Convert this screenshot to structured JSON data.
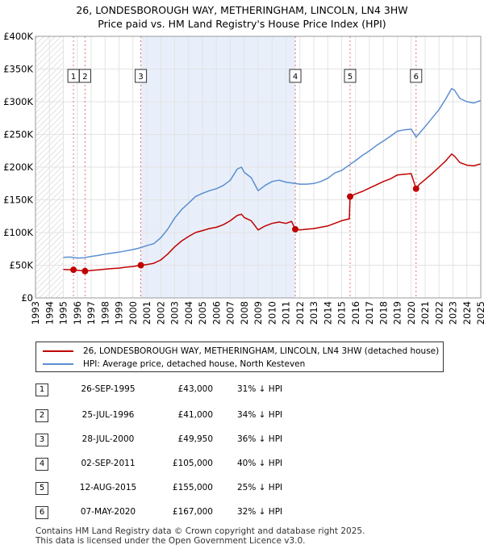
{
  "title": {
    "line1": "26, LONDESBOROUGH WAY, METHERINGHAM, LINCOLN, LN4 3HW",
    "line2": "Price paid vs. HM Land Registry's House Price Index (HPI)"
  },
  "chart_data": {
    "type": "line",
    "title": "26, LONDESBOROUGH WAY, METHERINGHAM, LINCOLN, LN4 3HW — Price paid vs. HM Land Registry's House Price Index (HPI)",
    "xlim": [
      1993,
      2025
    ],
    "ylim": [
      0,
      400000
    ],
    "x_ticks": [
      "1993",
      "1994",
      "1995",
      "1996",
      "1997",
      "1998",
      "1999",
      "2000",
      "2001",
      "2002",
      "2003",
      "2004",
      "2005",
      "2006",
      "2007",
      "2008",
      "2009",
      "2010",
      "2011",
      "2012",
      "2013",
      "2014",
      "2015",
      "2016",
      "2017",
      "2018",
      "2019",
      "2020",
      "2021",
      "2022",
      "2023",
      "2024",
      "2025"
    ],
    "y_ticks": [
      {
        "value": 0,
        "label": "£0"
      },
      {
        "value": 50000,
        "label": "£50K"
      },
      {
        "value": 100000,
        "label": "£100K"
      },
      {
        "value": 150000,
        "label": "£150K"
      },
      {
        "value": 200000,
        "label": "£200K"
      },
      {
        "value": 250000,
        "label": "£250K"
      },
      {
        "value": 300000,
        "label": "£300K"
      },
      {
        "value": 350000,
        "label": "£350K"
      },
      {
        "value": 400000,
        "label": "£400K"
      }
    ],
    "hatched_ranges": [
      [
        1993,
        1995.0
      ]
    ],
    "highlight_range": [
      2000.57,
      2011.67
    ],
    "grid": true,
    "series": [
      {
        "name": "HPI: Average price, detached house, North Kesteven",
        "color": "#5b8ed1",
        "points": [
          [
            1995,
            62000
          ],
          [
            1995.5,
            62500
          ],
          [
            1996,
            61000
          ],
          [
            1996.5,
            61500
          ],
          [
            1997,
            63500
          ],
          [
            1997.5,
            65000
          ],
          [
            1998,
            67000
          ],
          [
            1998.5,
            68500
          ],
          [
            1999,
            70000
          ],
          [
            1999.5,
            72000
          ],
          [
            2000,
            74000
          ],
          [
            2000.6,
            77000
          ],
          [
            2001,
            80000
          ],
          [
            2001.5,
            83000
          ],
          [
            2002,
            92000
          ],
          [
            2002.5,
            105000
          ],
          [
            2003,
            122000
          ],
          [
            2003.5,
            135000
          ],
          [
            2004,
            145000
          ],
          [
            2004.5,
            155000
          ],
          [
            2005,
            160000
          ],
          [
            2005.5,
            164000
          ],
          [
            2006,
            167000
          ],
          [
            2006.5,
            172000
          ],
          [
            2007,
            180000
          ],
          [
            2007.5,
            197000
          ],
          [
            2007.8,
            200000
          ],
          [
            2008,
            192000
          ],
          [
            2008.5,
            184000
          ],
          [
            2009,
            164000
          ],
          [
            2009.5,
            172000
          ],
          [
            2010,
            178000
          ],
          [
            2010.5,
            180000
          ],
          [
            2011,
            177000
          ],
          [
            2011.67,
            175000
          ],
          [
            2012,
            174000
          ],
          [
            2012.5,
            174000
          ],
          [
            2013,
            175000
          ],
          [
            2013.5,
            178000
          ],
          [
            2014,
            183000
          ],
          [
            2014.5,
            191000
          ],
          [
            2015,
            195000
          ],
          [
            2015.6,
            204000
          ],
          [
            2016,
            210000
          ],
          [
            2016.5,
            218000
          ],
          [
            2017,
            225000
          ],
          [
            2017.5,
            233000
          ],
          [
            2018,
            240000
          ],
          [
            2018.5,
            247000
          ],
          [
            2019,
            255000
          ],
          [
            2019.5,
            257000
          ],
          [
            2020,
            258000
          ],
          [
            2020.35,
            246000
          ],
          [
            2020.6,
            252000
          ],
          [
            2021,
            262000
          ],
          [
            2021.5,
            275000
          ],
          [
            2022,
            288000
          ],
          [
            2022.5,
            305000
          ],
          [
            2022.9,
            320000
          ],
          [
            2023.1,
            318000
          ],
          [
            2023.5,
            305000
          ],
          [
            2024,
            300000
          ],
          [
            2024.5,
            298000
          ],
          [
            2025,
            302000
          ]
        ]
      },
      {
        "name": "26, LONDESBOROUGH WAY, METHERINGHAM, LINCOLN, LN4 3HW (detached house)",
        "color": "#c00000",
        "points": [
          [
            1995,
            43500
          ],
          [
            1995.73,
            43000
          ],
          [
            1996,
            42500
          ],
          [
            1996.56,
            41000
          ],
          [
            1997,
            42000
          ],
          [
            1997.5,
            43000
          ],
          [
            1998,
            44000
          ],
          [
            1998.5,
            45000
          ],
          [
            1999,
            45500
          ],
          [
            1999.5,
            47000
          ],
          [
            2000,
            48000
          ],
          [
            2000.57,
            49950
          ],
          [
            2001,
            51000
          ],
          [
            2001.5,
            53000
          ],
          [
            2002,
            58000
          ],
          [
            2002.5,
            67000
          ],
          [
            2003,
            78000
          ],
          [
            2003.5,
            87000
          ],
          [
            2004,
            94000
          ],
          [
            2004.5,
            100000
          ],
          [
            2005,
            103000
          ],
          [
            2005.5,
            106000
          ],
          [
            2006,
            108000
          ],
          [
            2006.5,
            112000
          ],
          [
            2007,
            118000
          ],
          [
            2007.5,
            126000
          ],
          [
            2007.8,
            128000
          ],
          [
            2008,
            123000
          ],
          [
            2008.5,
            118000
          ],
          [
            2009,
            104000
          ],
          [
            2009.5,
            110000
          ],
          [
            2010,
            114000
          ],
          [
            2010.5,
            116000
          ],
          [
            2011,
            114000
          ],
          [
            2011.4,
            117000
          ],
          [
            2011.67,
            105000
          ],
          [
            2012,
            104000
          ],
          [
            2012.5,
            105000
          ],
          [
            2013,
            106000
          ],
          [
            2013.5,
            108000
          ],
          [
            2014,
            110000
          ],
          [
            2014.5,
            114000
          ],
          [
            2015,
            118000
          ],
          [
            2015.55,
            121000
          ],
          [
            2015.61,
            155000
          ],
          [
            2016,
            159000
          ],
          [
            2016.5,
            163000
          ],
          [
            2017,
            168000
          ],
          [
            2017.5,
            173000
          ],
          [
            2018,
            178000
          ],
          [
            2018.5,
            182000
          ],
          [
            2019,
            188000
          ],
          [
            2019.5,
            189000
          ],
          [
            2020,
            190000
          ],
          [
            2020.35,
            167000
          ],
          [
            2020.6,
            174000
          ],
          [
            2021,
            181000
          ],
          [
            2021.5,
            190000
          ],
          [
            2022,
            200000
          ],
          [
            2022.5,
            210000
          ],
          [
            2022.9,
            220000
          ],
          [
            2023.1,
            217000
          ],
          [
            2023.5,
            207000
          ],
          [
            2024,
            203000
          ],
          [
            2024.5,
            202000
          ],
          [
            2025,
            205000
          ]
        ]
      }
    ],
    "sales": [
      {
        "label": "1",
        "x": 1995.73,
        "price": 43000
      },
      {
        "label": "2",
        "x": 1996.56,
        "price": 41000
      },
      {
        "label": "3",
        "x": 2000.57,
        "price": 49950
      },
      {
        "label": "4",
        "x": 2011.67,
        "price": 105000
      },
      {
        "label": "5",
        "x": 2015.61,
        "price": 155000
      },
      {
        "label": "6",
        "x": 2020.35,
        "price": 167000
      }
    ]
  },
  "legend": {
    "property": "26, LONDESBOROUGH WAY, METHERINGHAM, LINCOLN, LN4 3HW (detached house)",
    "hpi": "HPI: Average price, detached house, North Kesteven",
    "colors": {
      "property": "#c00000",
      "hpi": "#5b8ed1"
    }
  },
  "transactions": [
    {
      "num": "1",
      "date": "26-SEP-1995",
      "price": "£43,000",
      "hpi": "31% ↓ HPI"
    },
    {
      "num": "2",
      "date": "25-JUL-1996",
      "price": "£41,000",
      "hpi": "34% ↓ HPI"
    },
    {
      "num": "3",
      "date": "28-JUL-2000",
      "price": "£49,950",
      "hpi": "36% ↓ HPI"
    },
    {
      "num": "4",
      "date": "02-SEP-2011",
      "price": "£105,000",
      "hpi": "40% ↓ HPI"
    },
    {
      "num": "5",
      "date": "12-AUG-2015",
      "price": "£155,000",
      "hpi": "25% ↓ HPI"
    },
    {
      "num": "6",
      "date": "07-MAY-2020",
      "price": "£167,000",
      "hpi": "32% ↓ HPI"
    }
  ],
  "footer": {
    "line1": "Contains HM Land Registry data © Crown copyright and database right 2025.",
    "line2": "This data is licensed under the Open Government Licence v3.0."
  }
}
